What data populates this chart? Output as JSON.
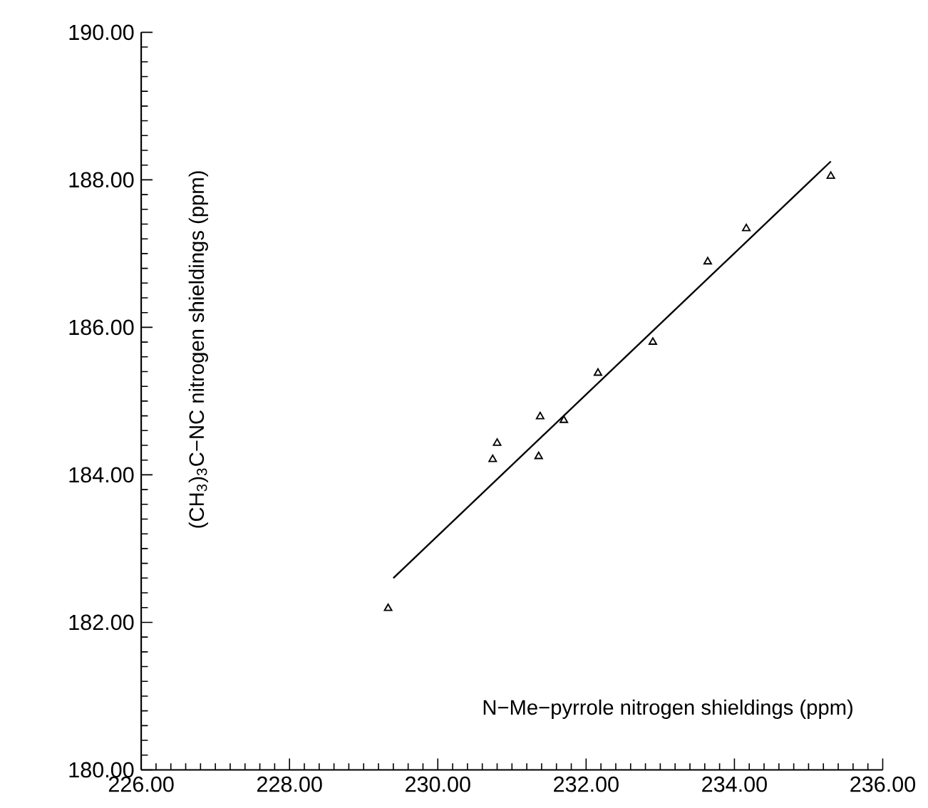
{
  "chart_data": {
    "type": "scatter",
    "xlabel": "N−Me−pyrrole nitrogen shieldings (ppm)",
    "ylabel": "(CH$_{3}$)$_{3}$C−NC nitrogen shieldings (ppm)",
    "grid": false,
    "xlim": [
      226,
      236
    ],
    "ylim": [
      180,
      190
    ],
    "xticks": [
      {
        "value": 226,
        "label": "226.00"
      },
      {
        "value": 228,
        "label": "228.00"
      },
      {
        "value": 230,
        "label": "230.00"
      },
      {
        "value": 232,
        "label": "232.00"
      },
      {
        "value": 234,
        "label": "234.00"
      },
      {
        "value": 236,
        "label": "236.00"
      }
    ],
    "yticks": [
      {
        "value": 180,
        "label": "180.00"
      },
      {
        "value": 182,
        "label": "182.00"
      },
      {
        "value": 184,
        "label": "184.00"
      },
      {
        "value": 186,
        "label": "186.00"
      },
      {
        "value": 188,
        "label": "188.00"
      },
      {
        "value": 190,
        "label": "190.00"
      }
    ],
    "series": [
      {
        "marker": "triangle",
        "color": "#000000",
        "x": [
          229.33,
          230.74,
          230.8,
          231.36,
          231.38,
          231.7,
          232.16,
          232.9,
          233.64,
          234.16,
          235.3
        ],
        "values": [
          182.19,
          184.21,
          184.43,
          184.25,
          184.79,
          184.74,
          185.38,
          185.8,
          186.89,
          187.34,
          188.05
        ]
      },
      {
        "type": "line",
        "marker": "none",
        "color": "#000000",
        "x": [
          229.4,
          235.3
        ],
        "values": [
          182.6,
          188.25
        ]
      }
    ]
  }
}
